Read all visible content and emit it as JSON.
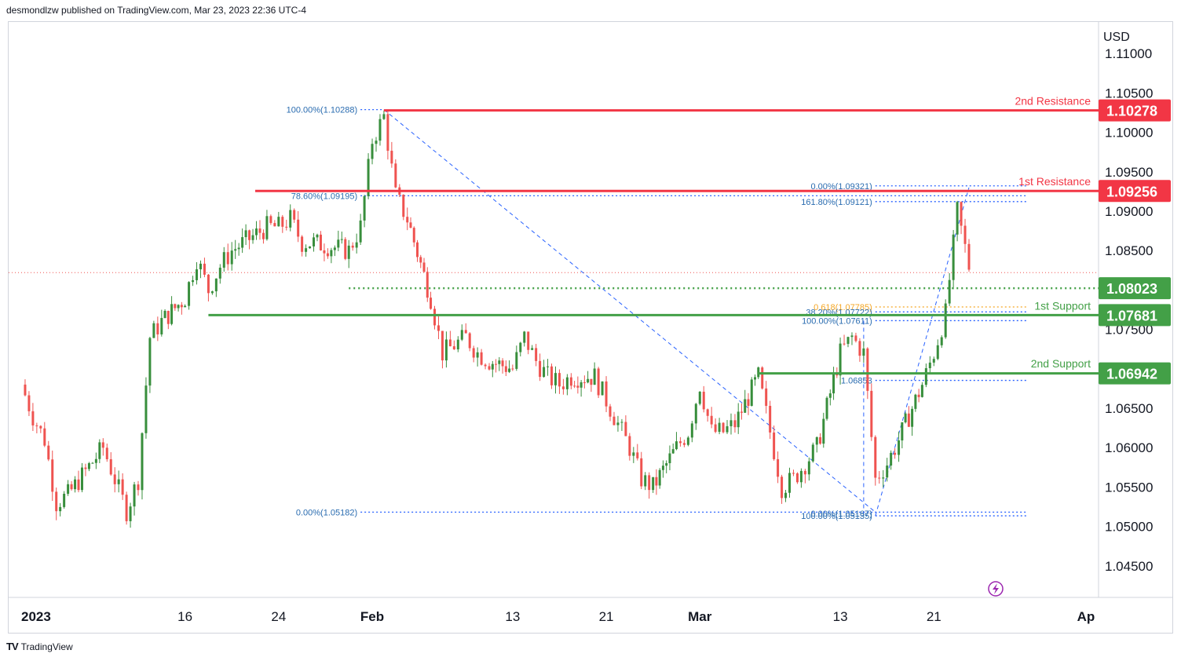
{
  "header": {
    "publisher_line": "desmondlzw published on TradingView.com, Mar 23, 2023 22:36 UTC-4"
  },
  "footer": {
    "brand": "TradingView",
    "logo_glyph": "TV"
  },
  "colors": {
    "up": "#388e3c",
    "down": "#ef5350",
    "resistance": "#f23645",
    "support": "#43a047",
    "fib": "#2962ff",
    "fib_text": "#2a6cb0",
    "golden": "#f5a623",
    "current_price_line": "#ef5350",
    "grid": "#ffffff",
    "axis_text": "#131722",
    "axis_border": "#d1d4dc"
  },
  "chart_data": {
    "type": "candlestick",
    "symbol_currency": "USD",
    "ylim": [
      1.041,
      1.114
    ],
    "y_ticks": [
      "1.11000",
      "1.10500",
      "1.10000",
      "1.09500",
      "1.09000",
      "1.08500",
      "1.08000",
      "1.07500",
      "1.07000",
      "1.06500",
      "1.06000",
      "1.05500",
      "1.05000",
      "1.04500"
    ],
    "x_ticks": [
      {
        "label": "2023",
        "date": "2023-01-02",
        "bold": true
      },
      {
        "label": "16",
        "date": "2023-01-16"
      },
      {
        "label": "24",
        "date": "2023-01-24"
      },
      {
        "label": "Feb",
        "date": "2023-02-01",
        "bold": true
      },
      {
        "label": "13",
        "date": "2023-02-13"
      },
      {
        "label": "21",
        "date": "2023-02-21"
      },
      {
        "label": "Mar",
        "date": "2023-03-01",
        "bold": true
      },
      {
        "label": "13",
        "date": "2023-03-13"
      },
      {
        "label": "21",
        "date": "2023-03-21"
      },
      {
        "label": "Ap",
        "date": "2023-04-03",
        "bold": true
      }
    ],
    "x_range": [
      "2023-01-02",
      "2023-04-03"
    ],
    "price_path": [
      [
        "2023-01-02",
        1.068
      ],
      [
        "2023-01-03",
        1.064
      ],
      [
        "2023-01-04",
        1.061
      ],
      [
        "2023-01-05",
        1.053
      ],
      [
        "2023-01-06",
        1.054
      ],
      [
        "2023-01-09",
        1.06
      ],
      [
        "2023-01-10",
        1.056
      ],
      [
        "2023-01-11",
        1.052
      ],
      [
        "2023-01-12",
        1.056
      ],
      [
        "2023-01-13",
        1.074
      ],
      [
        "2023-01-14",
        1.076
      ],
      [
        "2023-01-16",
        1.079
      ],
      [
        "2023-01-17",
        1.084
      ],
      [
        "2023-01-18",
        1.08
      ],
      [
        "2023-01-19",
        1.083
      ],
      [
        "2023-01-20",
        1.085
      ],
      [
        "2023-01-23",
        1.088
      ],
      [
        "2023-01-24",
        1.088
      ],
      [
        "2023-01-25",
        1.089
      ],
      [
        "2023-01-26",
        1.086
      ],
      [
        "2023-01-27",
        1.086
      ],
      [
        "2023-01-30",
        1.085
      ],
      [
        "2023-01-31",
        1.088
      ],
      [
        "2023-02-01",
        1.099
      ],
      [
        "2023-02-02",
        1.102
      ],
      [
        "2023-02-03",
        1.092
      ],
      [
        "2023-02-04",
        1.089
      ],
      [
        "2023-02-06",
        1.079
      ],
      [
        "2023-02-07",
        1.072
      ],
      [
        "2023-02-08",
        1.073
      ],
      [
        "2023-02-09",
        1.074
      ],
      [
        "2023-02-10",
        1.072
      ],
      [
        "2023-02-11",
        1.071
      ],
      [
        "2023-02-13",
        1.07
      ],
      [
        "2023-02-14",
        1.074
      ],
      [
        "2023-02-15",
        1.071
      ],
      [
        "2023-02-16",
        1.069
      ],
      [
        "2023-02-17",
        1.068
      ],
      [
        "2023-02-18",
        1.069
      ],
      [
        "2023-02-20",
        1.069
      ],
      [
        "2023-02-21",
        1.066
      ],
      [
        "2023-02-22",
        1.063
      ],
      [
        "2023-02-23",
        1.06
      ],
      [
        "2023-02-24",
        1.056
      ],
      [
        "2023-02-25",
        1.055
      ],
      [
        "2023-02-27",
        1.06
      ],
      [
        "2023-02-28",
        1.062
      ],
      [
        "2023-03-01",
        1.068
      ],
      [
        "2023-03-02",
        1.062
      ],
      [
        "2023-03-03",
        1.062
      ],
      [
        "2023-03-04",
        1.063
      ],
      [
        "2023-03-06",
        1.069
      ],
      [
        "2023-03-07",
        1.062
      ],
      [
        "2023-03-08",
        1.055
      ],
      [
        "2023-03-09",
        1.056
      ],
      [
        "2023-03-10",
        1.058
      ],
      [
        "2023-03-11",
        1.06
      ],
      [
        "2023-03-13",
        1.072
      ],
      [
        "2023-03-14",
        1.074
      ],
      [
        "2023-03-15",
        1.072
      ],
      [
        "2023-03-16",
        1.056
      ],
      [
        "2023-03-17",
        1.058
      ],
      [
        "2023-03-18",
        1.061
      ],
      [
        "2023-03-20",
        1.068
      ],
      [
        "2023-03-21",
        1.072
      ],
      [
        "2023-03-22",
        1.077
      ],
      [
        "2023-03-23",
        1.09
      ],
      [
        "2023-03-24",
        1.083
      ]
    ],
    "levels": [
      {
        "name": "2nd Resistance",
        "value": "1.10278",
        "price": 1.10278,
        "kind": "resistance",
        "label_price": 1.1035
      },
      {
        "name": "1st Resistance",
        "value": "1.09256",
        "price": 1.09256,
        "kind": "resistance",
        "label_price": 1.0933
      },
      {
        "name": "",
        "value": "1.08023",
        "price": 1.08023,
        "kind": "support_dotted",
        "label_price": null
      },
      {
        "name": "1st Support",
        "value": "1.07681",
        "price": 1.07681,
        "kind": "support",
        "label_price": 1.0775
      },
      {
        "name": "2nd Support",
        "value": "1.06942",
        "price": 1.06942,
        "kind": "support",
        "label_price": 1.0702
      }
    ],
    "fib_labels": [
      {
        "text": "100.00%(1.10288)",
        "price": 1.10288,
        "date": "2023-01-31",
        "anchor": "end"
      },
      {
        "text": "78.60%(1.09195)",
        "price": 1.09195,
        "date": "2023-01-31",
        "anchor": "end"
      },
      {
        "text": "0.00%(1.05182)",
        "price": 1.05182,
        "date": "2023-01-31",
        "anchor": "end"
      },
      {
        "text": "0.00%(1.09321)",
        "price": 1.09321,
        "date": "2023-03-16",
        "anchor": "end"
      },
      {
        "text": "161.80%(1.09121)",
        "price": 1.09121,
        "date": "2023-03-16",
        "anchor": "end"
      },
      {
        "text": "0.618(1.07785)",
        "price": 1.07785,
        "date": "2023-03-16",
        "anchor": "end",
        "golden": true
      },
      {
        "text": "38.20%(1.07722)",
        "price": 1.07722,
        "date": "2023-03-16",
        "anchor": "end"
      },
      {
        "text": "100.00%(1.07611)",
        "price": 1.07611,
        "date": "2023-03-16",
        "anchor": "end"
      },
      {
        "text": "1.06853",
        "price": 1.06853,
        "date": "2023-03-16",
        "anchor": "end"
      },
      {
        "text": "0.00%(1.05167)",
        "price": 1.05167,
        "date": "2023-03-16",
        "anchor": "end"
      },
      {
        "text": "100.00%(1.05135)",
        "price": 1.05135,
        "date": "2023-03-16",
        "anchor": "end"
      }
    ],
    "current_price": 1.0822
  }
}
